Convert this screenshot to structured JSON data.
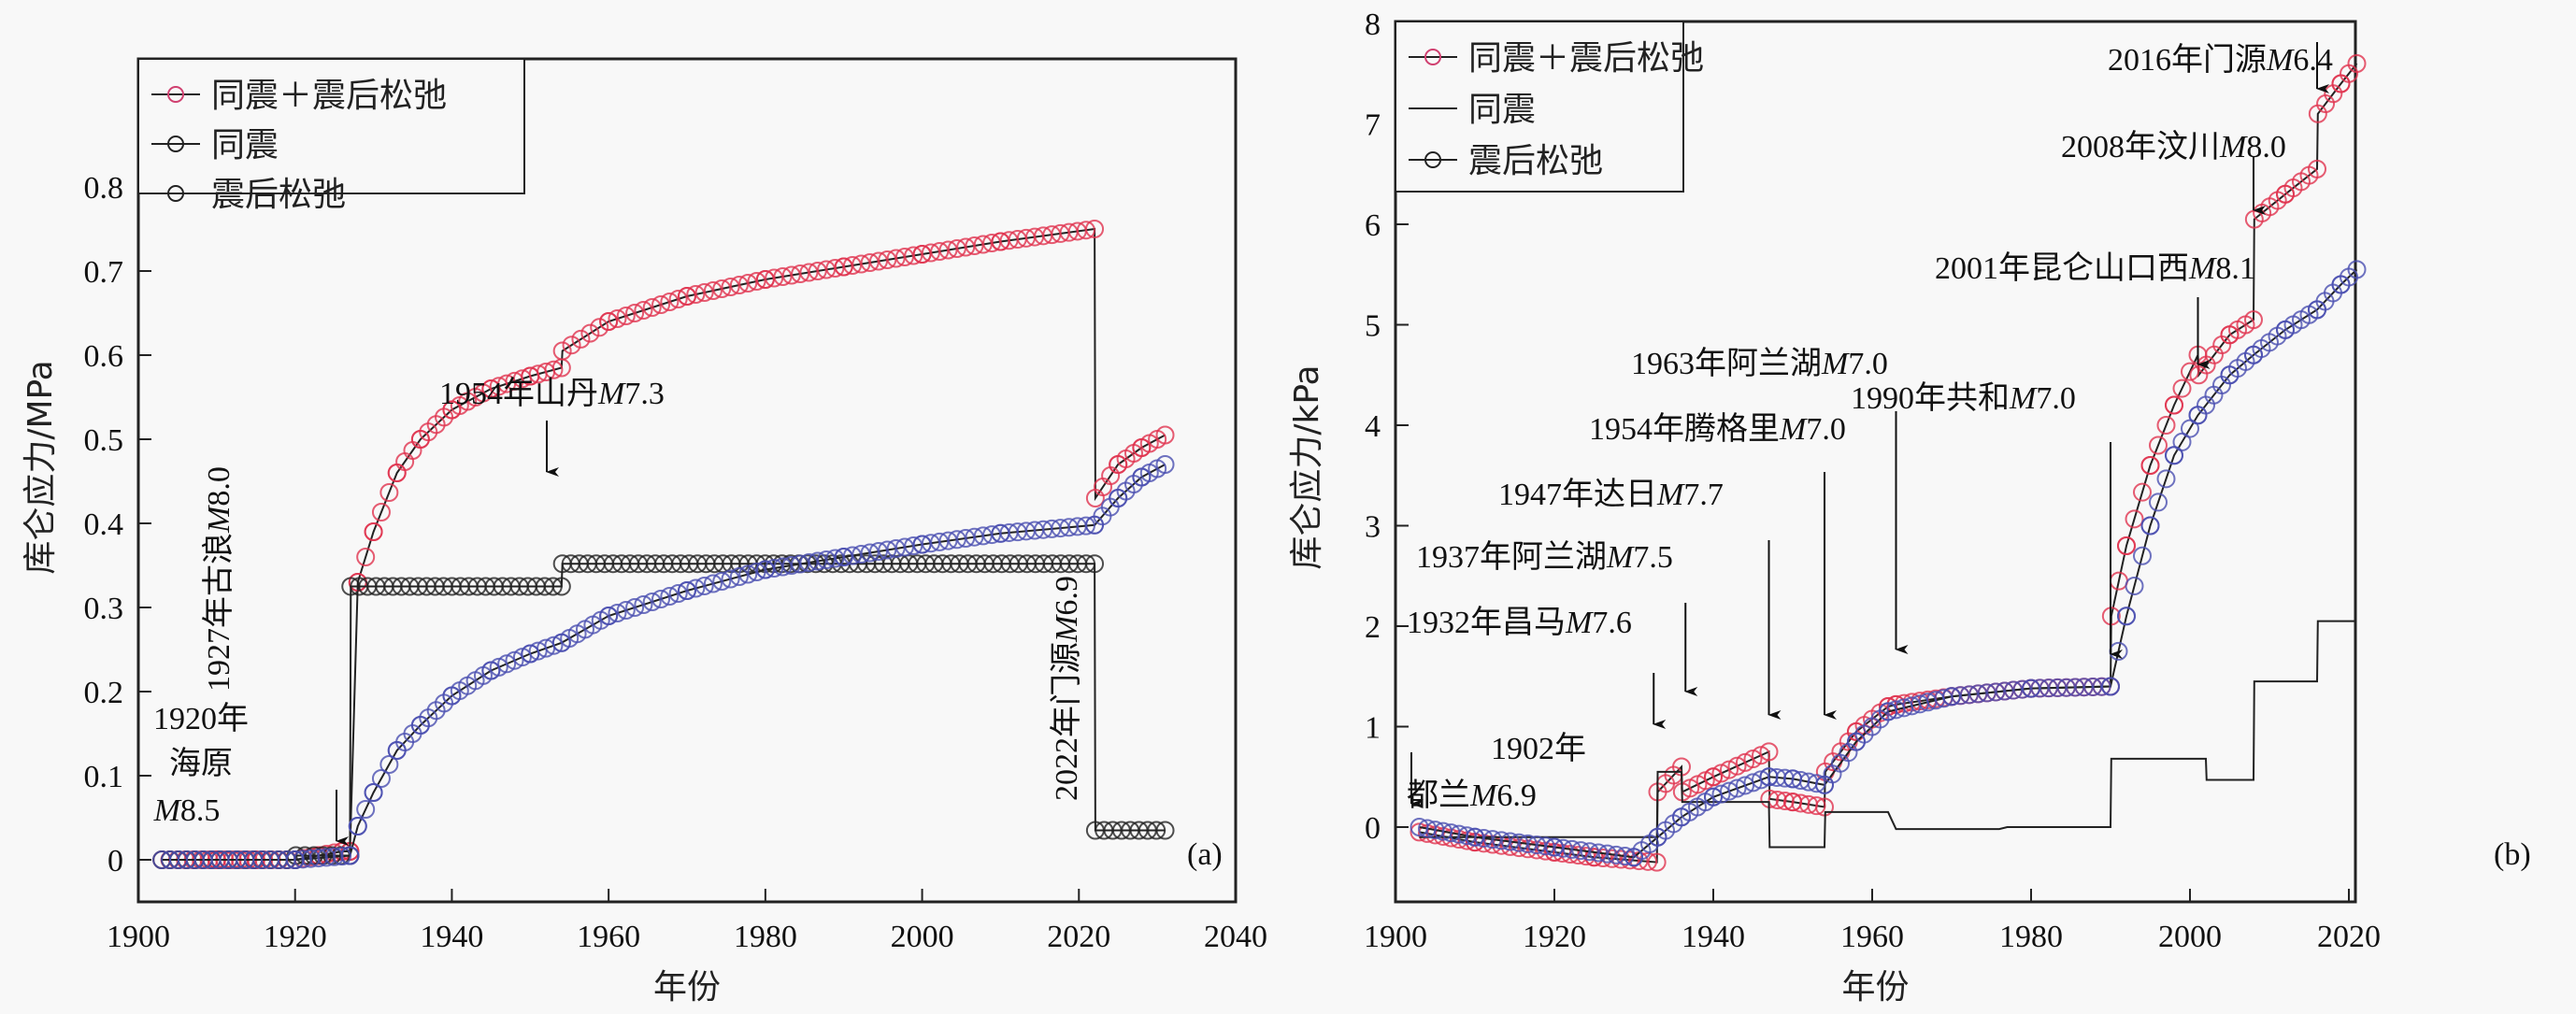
{
  "chart_data": [
    {
      "panel": "(a)",
      "type": "line",
      "xlabel": "年份",
      "ylabel": "库仑应力/MPa",
      "xlim": [
        1900,
        2040
      ],
      "ylim": [
        -0.1,
        0.8
      ],
      "xticks": [
        1900,
        1920,
        1940,
        1960,
        1980,
        2000,
        2020,
        2040
      ],
      "yticks": [
        0,
        0.1,
        0.2,
        0.3,
        0.4,
        0.5,
        0.6,
        0.7,
        0.8
      ],
      "ytick_labels": [
        "0",
        "0.1",
        "0.2",
        "0.3",
        "0.4",
        "0.5",
        "0.6",
        "0.7",
        "0.8"
      ],
      "legend": {
        "placement": "top-left",
        "entries": [
          "同震＋震后松弛",
          "同震",
          "震后松弛"
        ]
      },
      "series": [
        {
          "name": "同震＋震后松弛",
          "marker": "circle",
          "color": "#e0334f",
          "x": [
            1903,
            1910,
            1915,
            1920,
            1923,
            1926,
            1927,
            1928,
            1930,
            1933,
            1936,
            1940,
            1945,
            1950,
            1954,
            1954.1,
            1960,
            1970,
            1980,
            1990,
            2000,
            2010,
            2022,
            2022.1,
            2025,
            2028,
            2031
          ],
          "y": [
            0,
            0,
            0,
            0,
            0.005,
            0.01,
            0.01,
            0.33,
            0.39,
            0.46,
            0.5,
            0.535,
            0.56,
            0.575,
            0.585,
            0.605,
            0.64,
            0.67,
            0.69,
            0.705,
            0.72,
            0.735,
            0.75,
            0.43,
            0.47,
            0.49,
            0.505
          ]
        },
        {
          "name": "同震",
          "marker": "circle",
          "color": "#222222",
          "x": [
            1903,
            1920,
            1920.1,
            1927,
            1927.1,
            1954,
            1954.1,
            2022,
            2022.1,
            2031
          ],
          "y": [
            0,
            0,
            0.005,
            0.005,
            0.325,
            0.325,
            0.352,
            0.352,
            0.035,
            0.035
          ]
        },
        {
          "name": "震后松弛",
          "marker": "circle",
          "color": "#4a4fb0",
          "x": [
            1903,
            1920,
            1927,
            1928,
            1930,
            1933,
            1936,
            1940,
            1945,
            1950,
            1954,
            1960,
            1970,
            1980,
            1990,
            2000,
            2010,
            2022,
            2025,
            2028,
            2031
          ],
          "y": [
            0,
            0,
            0.005,
            0.04,
            0.08,
            0.13,
            0.16,
            0.195,
            0.225,
            0.245,
            0.258,
            0.29,
            0.32,
            0.345,
            0.36,
            0.375,
            0.388,
            0.398,
            0.43,
            0.455,
            0.47
          ]
        }
      ],
      "annotations": [
        {
          "text_lines": [
            "1920年",
            "海原",
            "M8.5"
          ],
          "x": 1920,
          "arrow": "down"
        },
        {
          "text": "1927年古浪M8.0",
          "x": 1927,
          "orientation": "vertical"
        },
        {
          "text": "1954年山丹M7.3",
          "x": 1954,
          "arrow": "down"
        },
        {
          "text": "2022年门源M6.9",
          "x": 2022,
          "orientation": "vertical"
        }
      ]
    },
    {
      "panel": "(b)",
      "type": "line",
      "xlabel": "年份",
      "ylabel": "库仑应力/kPa",
      "xlim": [
        1900,
        2022
      ],
      "ylim": [
        -1.5,
        8
      ],
      "xticks": [
        1900,
        1920,
        1940,
        1960,
        1980,
        2000,
        2020
      ],
      "yticks": [
        0,
        1,
        2,
        3,
        4,
        5,
        6,
        7,
        8
      ],
      "ytick_labels": [
        "0",
        "1",
        "2",
        "3",
        "4",
        "5",
        "6",
        "7",
        "8"
      ],
      "legend": {
        "placement": "top-left",
        "entries": [
          "同震＋震后松弛",
          "同震",
          "震后松弛"
        ]
      },
      "series": [
        {
          "name": "同震＋震后松弛",
          "marker": "circle",
          "color": "#e0334f",
          "x": [
            1903,
            1910,
            1920,
            1925,
            1932.9,
            1933,
            1936,
            1936.1,
            1940,
            1947,
            1947.1,
            1950,
            1954,
            1954.1,
            1958,
            1962,
            1963,
            1970,
            1980,
            1990,
            1990.1,
            1992,
            1995,
            1998,
            2001,
            2001.1,
            2005,
            2008,
            2008.1,
            2012,
            2016,
            2016.1,
            2019,
            2021
          ],
          "y": [
            -0.05,
            -0.15,
            -0.25,
            -0.3,
            -0.35,
            0.35,
            0.6,
            0.35,
            0.5,
            0.75,
            0.28,
            0.25,
            0.2,
            0.55,
            0.95,
            1.2,
            1.22,
            1.3,
            1.38,
            1.4,
            2.1,
            2.8,
            3.6,
            4.2,
            4.7,
            4.5,
            4.9,
            5.05,
            6.05,
            6.3,
            6.55,
            7.1,
            7.4,
            7.6
          ]
        },
        {
          "name": "同震",
          "marker": "none",
          "color": "#222222",
          "x": [
            1903,
            1932.9,
            1933,
            1936,
            1936.1,
            1947,
            1947.1,
            1954,
            1954.1,
            1962,
            1963,
            1976,
            1977,
            1990,
            1990.1,
            2002,
            2002.1,
            2008,
            2008.1,
            2016,
            2016.1,
            2021
          ],
          "y": [
            -0.1,
            -0.1,
            0.55,
            0.55,
            0.25,
            0.25,
            -0.2,
            -0.2,
            0.15,
            0.15,
            -0.02,
            -0.02,
            0,
            0,
            0.68,
            0.68,
            0.47,
            0.47,
            1.45,
            1.45,
            2.05,
            2.05
          ]
        },
        {
          "name": "震后松弛",
          "marker": "circle",
          "color": "#4a4fb0",
          "x": [
            1903,
            1910,
            1920,
            1930,
            1933,
            1936,
            1940,
            1947,
            1950,
            1954,
            1958,
            1962,
            1970,
            1980,
            1990,
            1992,
            1995,
            1998,
            2001,
            2005,
            2008,
            2012,
            2016,
            2019,
            2021
          ],
          "y": [
            0,
            -0.1,
            -0.2,
            -0.3,
            -0.1,
            0.1,
            0.3,
            0.5,
            0.48,
            0.42,
            0.85,
            1.15,
            1.3,
            1.38,
            1.4,
            2.1,
            3.0,
            3.7,
            4.1,
            4.5,
            4.7,
            4.95,
            5.15,
            5.4,
            5.55
          ]
        }
      ],
      "annotations": [
        {
          "text_lines": [
            "1902年",
            "都兰M6.9"
          ],
          "x": 1902,
          "arrow": "down"
        },
        {
          "text": "1932年昌马M7.6",
          "x": 1932,
          "arrow": "down"
        },
        {
          "text": "1937年阿兰湖M7.5",
          "x": 1937,
          "arrow": "down"
        },
        {
          "text": "1947年达日M7.7",
          "x": 1947,
          "arrow": "down"
        },
        {
          "text": "1954年腾格里M7.0",
          "x": 1954,
          "arrow": "down"
        },
        {
          "text": "1963年阿兰湖M7.0",
          "x": 1963,
          "arrow": "down"
        },
        {
          "text": "1990年共和M7.0",
          "x": 1990,
          "arrow": "down"
        },
        {
          "text": "2001年昆仑山口西M8.1",
          "x": 2001,
          "arrow": "down"
        },
        {
          "text": "2008年汶川M8.0",
          "x": 2008,
          "arrow": "down"
        },
        {
          "text": "2016年门源M6.4",
          "x": 2016,
          "arrow": "down"
        }
      ]
    }
  ]
}
